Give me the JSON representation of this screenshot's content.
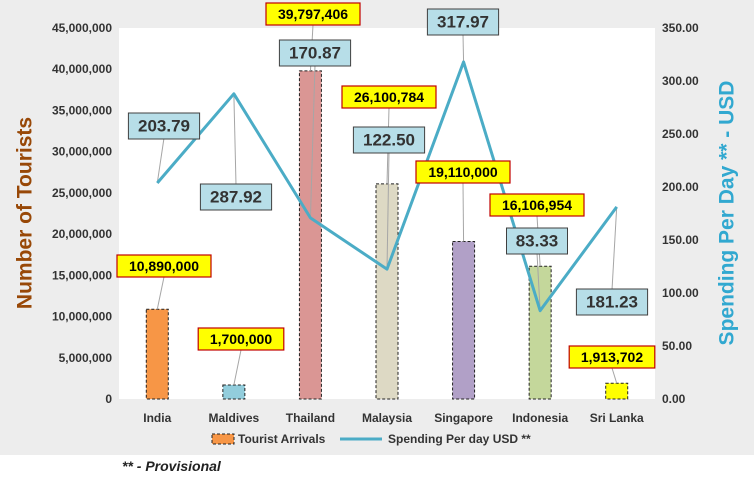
{
  "chart_data": {
    "type": "bar+line",
    "categories": [
      "India",
      "Maldives",
      "Thailand",
      "Malaysia",
      "Singapore",
      "Indonesia",
      "Sri Lanka"
    ],
    "series": [
      {
        "name": "Tourist Arrivals",
        "type": "bar",
        "axis": "left",
        "values": [
          10890000,
          1700000,
          39797406,
          26100784,
          19110000,
          16106954,
          1913702
        ],
        "labels": [
          "10,890,000",
          "1,700,000",
          "39,797,406",
          "26,100,784",
          "19,110,000",
          "16,106,954",
          "1,913,702"
        ],
        "colors": [
          "#f79646",
          "#92cddc",
          "#da9694",
          "#ddd9c4",
          "#b1a0c7",
          "#c4d79b",
          "#ffff00"
        ]
      },
      {
        "name": "Spending Per day USD **",
        "type": "line",
        "axis": "right",
        "values": [
          203.79,
          287.92,
          170.87,
          122.5,
          317.97,
          83.33,
          181.23
        ],
        "labels": [
          "203.79",
          "287.92",
          "170.87",
          "122.50",
          "317.97",
          "83.33",
          "181.23"
        ],
        "color": "#4bacc6"
      }
    ],
    "ylabel": "Number of Tourists",
    "y2label": "Spending Per Day ** - USD",
    "ylim": [
      0,
      45000000
    ],
    "y2lim": [
      0,
      350
    ],
    "yticks": [
      "0",
      "5,000,000",
      "10,000,000",
      "15,000,000",
      "20,000,000",
      "25,000,000",
      "30,000,000",
      "35,000,000",
      "40,000,000",
      "45,000,000"
    ],
    "y2ticks": [
      "0.00",
      "50.00",
      "100.00",
      "150.00",
      "200.00",
      "250.00",
      "300.00",
      "350.00"
    ],
    "legend_position": "bottom",
    "grid": false,
    "colors": {
      "frame_bg": "#ededed",
      "plot_bg": "#ffffff",
      "ylabel_color": "#984807",
      "y2label_color": "#31a8d0",
      "bar_label_fill": "#ffff00",
      "bar_label_border": "#c00000",
      "line_label_fill": "#b7dee8",
      "line_label_border": "#404040"
    }
  },
  "footnote": "** - Provisional"
}
